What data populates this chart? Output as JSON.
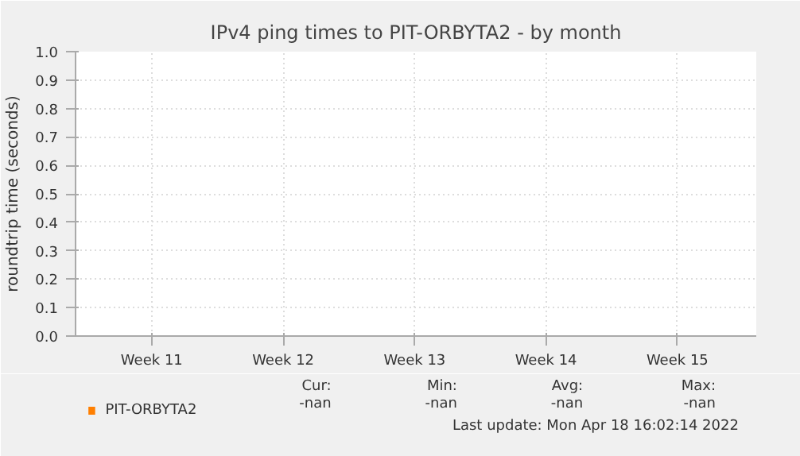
{
  "chart_data": {
    "type": "line",
    "title": "IPv4 ping times to PIT-ORBYTA2 - by month",
    "ylabel": "roundtrip time (seconds)",
    "categories": [
      "Week 11",
      "Week 12",
      "Week 13",
      "Week 14",
      "Week 15"
    ],
    "ylim": [
      0,
      1
    ],
    "yticks": [
      {
        "value": 0,
        "label": "0.0"
      },
      {
        "value": 0.1,
        "label": "0.1"
      },
      {
        "value": 0.2,
        "label": "0.2"
      },
      {
        "value": 0.3,
        "label": "0.3"
      },
      {
        "value": 0.4,
        "label": "0.4"
      },
      {
        "value": 0.5,
        "label": "0.5"
      },
      {
        "value": 0.6,
        "label": "0.6"
      },
      {
        "value": 0.7,
        "label": "0.7"
      },
      {
        "value": 0.8,
        "label": "0.8"
      },
      {
        "value": 0.9,
        "label": "0.9"
      },
      {
        "value": 1,
        "label": "1.0"
      }
    ],
    "series": [
      {
        "name": "PIT-ORBYTA2",
        "color": "#ff7f00",
        "values": [
          null,
          null,
          null,
          null,
          null
        ]
      }
    ],
    "grid": true,
    "legend": "bottom left",
    "annotations": [
      "Cur:",
      "Min:",
      "Avg:",
      "Max:",
      "-nan",
      "-nan",
      "-nan",
      "-nan",
      "Last update: Mon Apr 18 16:02:14 2022"
    ]
  }
}
